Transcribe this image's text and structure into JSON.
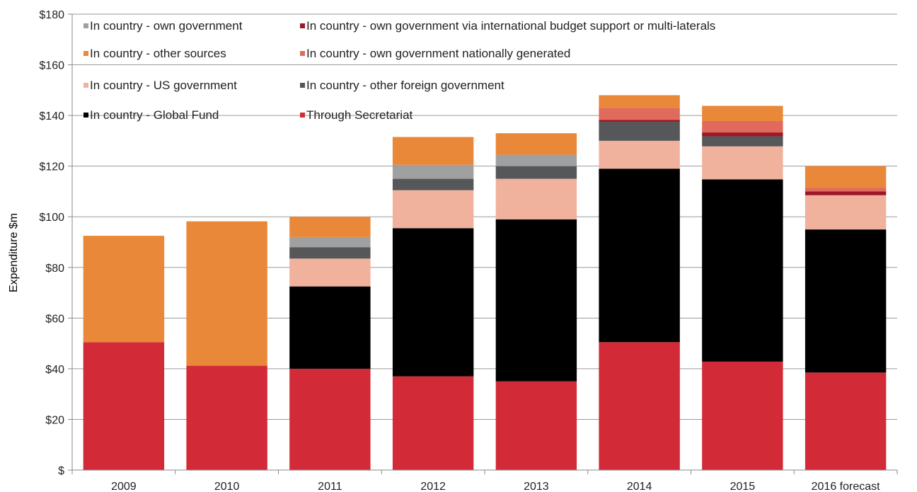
{
  "chart_data": {
    "type": "bar",
    "stacked": true,
    "title": "",
    "xlabel": "",
    "ylabel": "Expenditure $m",
    "ylim": [
      0,
      180
    ],
    "y_ticks": [
      0,
      20,
      40,
      60,
      80,
      100,
      120,
      140,
      160,
      180
    ],
    "y_tick_labels": [
      "$",
      "$20",
      "$40",
      "$60",
      "$80",
      "$100",
      "$120",
      "$140",
      "$160",
      "$180"
    ],
    "grid": true,
    "legend_position": "top-left",
    "categories": [
      "2009",
      "2010",
      "2011",
      "2012",
      "2013",
      "2014",
      "2015",
      "2016 forecast"
    ],
    "series": [
      {
        "name": "Through Secretariat",
        "color": "#d22b37",
        "values": [
          50.5,
          41.2,
          40.0,
          37.0,
          35.0,
          50.5,
          42.8,
          38.5
        ]
      },
      {
        "name": "In country - Global Fund",
        "color": "#000000",
        "values": [
          0,
          0,
          32.5,
          58.5,
          64.0,
          68.5,
          72.0,
          56.5
        ]
      },
      {
        "name": "In country - US government",
        "color": "#f0b19d",
        "values": [
          0,
          0,
          11.0,
          15.0,
          16.0,
          11.0,
          13.0,
          13.5
        ]
      },
      {
        "name": "In country - other foreign government",
        "color": "#555759",
        "values": [
          0,
          0,
          4.5,
          4.5,
          5.0,
          7.5,
          4.0,
          0
        ]
      },
      {
        "name": "In country - own government via international budget support or multi-laterals",
        "color": "#9c1826",
        "values": [
          0,
          0,
          0,
          0,
          0,
          0.8,
          1.5,
          1.5
        ]
      },
      {
        "name": "In country - own government nationally generated",
        "color": "#e06b5c",
        "values": [
          0,
          0,
          0,
          0,
          0,
          4.7,
          4.5,
          1.5
        ]
      },
      {
        "name": "In country - own government",
        "color": "#a0a0a0",
        "values": [
          0,
          0,
          4.0,
          5.5,
          4.5,
          0,
          0,
          0
        ]
      },
      {
        "name": "In country - other sources",
        "color": "#ea8839",
        "values": [
          42.0,
          57.0,
          8.0,
          11.0,
          8.5,
          5.0,
          6.0,
          8.5
        ]
      }
    ],
    "legend_order": [
      "In country - own government",
      "In country - own government via international budget support or multi-laterals",
      "In country - other sources",
      "In country - own government nationally generated",
      "In country - US government",
      "In country - other foreign government",
      "In country - Global Fund",
      "Through Secretariat"
    ]
  }
}
